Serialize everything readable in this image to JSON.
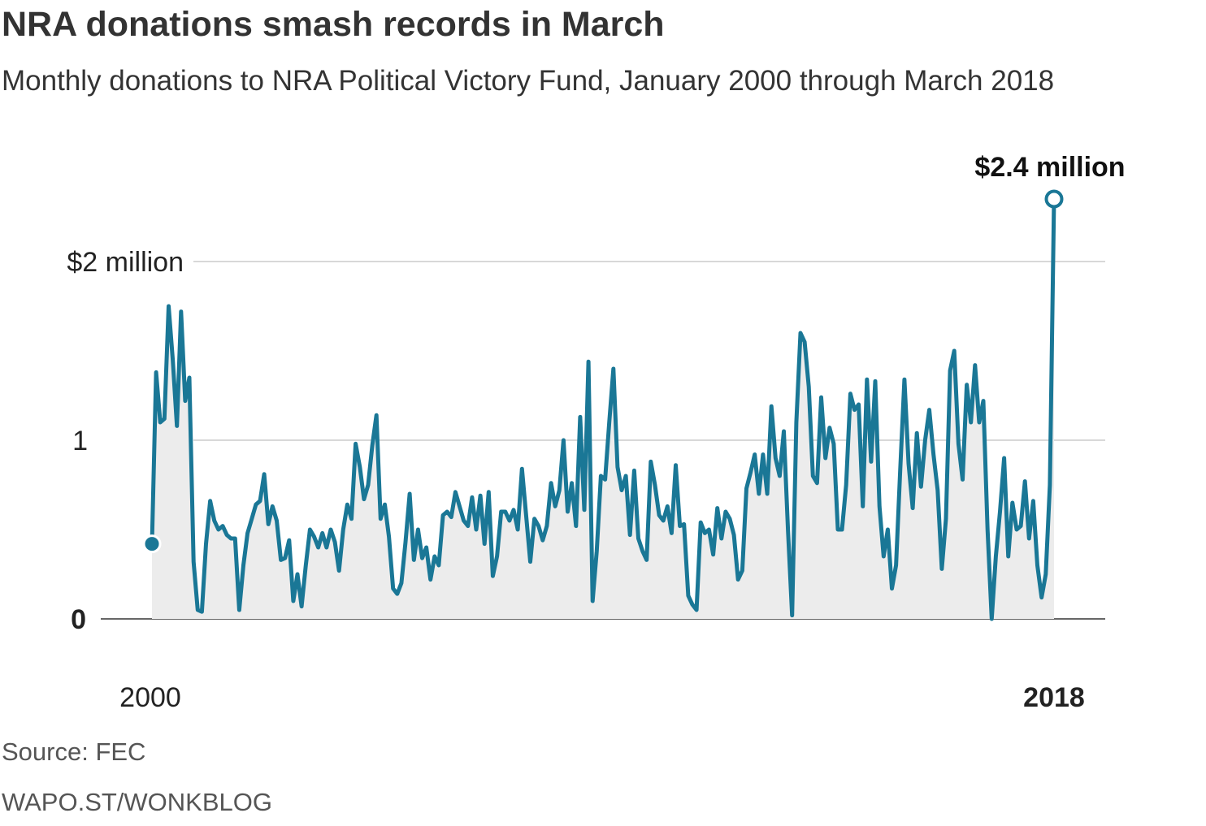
{
  "header": {
    "title": "NRA donations smash records in March",
    "subtitle": "Monthly donations to NRA Political Victory Fund, January 2000 through March 2018"
  },
  "footer": {
    "source": "Source: FEC",
    "credit": "WAPO.ST/WONKBLOG"
  },
  "colors": {
    "line": "#1a7796",
    "area": "#ececec",
    "grid": "#cccccc",
    "baseline": "#666666"
  },
  "chart_data": {
    "type": "area",
    "title": "NRA donations smash records in March",
    "subtitle": "Monthly donations to NRA Political Victory Fund, January 2000 through March 2018",
    "xlabel": "",
    "ylabel": "",
    "x_start": "2000-01",
    "x_end": "2018-03",
    "xlim": [
      2000,
      2018
    ],
    "ylim": [
      0,
      2.4
    ],
    "y_ticks": [
      {
        "value": 0,
        "label": "0",
        "bold": true
      },
      {
        "value": 1,
        "label": "1",
        "bold": false
      },
      {
        "value": 2,
        "label": "$2 million",
        "bold": false
      }
    ],
    "x_ticks": [
      {
        "value": 2000,
        "label": "2000",
        "bold": false
      },
      {
        "value": 2018,
        "label": "2018",
        "bold": true
      }
    ],
    "annotation": {
      "label": "$2.4 million",
      "value": 2.35,
      "month": "2018-03"
    },
    "grid": true,
    "legend": "none",
    "series": [
      {
        "values": [
          0.42,
          1.38,
          1.1,
          1.12,
          1.75,
          1.45,
          1.08,
          1.72,
          1.22,
          1.35,
          0.32,
          0.05,
          0.04,
          0.42,
          0.66,
          0.55,
          0.5,
          0.52,
          0.47,
          0.45,
          0.45,
          0.05,
          0.3,
          0.48,
          0.56,
          0.64,
          0.66,
          0.81,
          0.53,
          0.63,
          0.55,
          0.33,
          0.34,
          0.44,
          0.1,
          0.25,
          0.07,
          0.3,
          0.5,
          0.46,
          0.4,
          0.48,
          0.4,
          0.5,
          0.43,
          0.27,
          0.5,
          0.64,
          0.56,
          0.98,
          0.85,
          0.67,
          0.75,
          0.97,
          1.14,
          0.56,
          0.64,
          0.46,
          0.17,
          0.14,
          0.2,
          0.43,
          0.7,
          0.33,
          0.5,
          0.34,
          0.4,
          0.22,
          0.35,
          0.3,
          0.58,
          0.6,
          0.57,
          0.71,
          0.63,
          0.55,
          0.52,
          0.68,
          0.5,
          0.69,
          0.42,
          0.71,
          0.24,
          0.35,
          0.6,
          0.6,
          0.55,
          0.61,
          0.5,
          0.84,
          0.58,
          0.32,
          0.56,
          0.52,
          0.44,
          0.52,
          0.76,
          0.63,
          0.72,
          1.0,
          0.6,
          0.76,
          0.52,
          1.13,
          0.61,
          1.44,
          0.1,
          0.38,
          0.8,
          0.78,
          1.1,
          1.4,
          0.85,
          0.72,
          0.8,
          0.47,
          0.83,
          0.45,
          0.38,
          0.33,
          0.88,
          0.75,
          0.58,
          0.55,
          0.63,
          0.48,
          0.86,
          0.52,
          0.53,
          0.13,
          0.08,
          0.05,
          0.54,
          0.48,
          0.5,
          0.36,
          0.62,
          0.45,
          0.6,
          0.56,
          0.47,
          0.22,
          0.27,
          0.73,
          0.82,
          0.92,
          0.7,
          0.92,
          0.7,
          1.19,
          0.9,
          0.8,
          1.05,
          0.5,
          0.02,
          1.1,
          1.6,
          1.55,
          1.3,
          0.8,
          0.76,
          1.24,
          0.9,
          1.07,
          0.98,
          0.5,
          0.5,
          0.75,
          1.26,
          1.17,
          1.2,
          0.63,
          1.34,
          0.88,
          1.33,
          0.63,
          0.35,
          0.5,
          0.17,
          0.3,
          0.83,
          1.34,
          0.87,
          0.62,
          1.04,
          0.74,
          1.0,
          1.17,
          0.92,
          0.72,
          0.28,
          0.56,
          1.39,
          1.5,
          0.98,
          0.78,
          1.31,
          1.1,
          1.42,
          1.1,
          1.22,
          0.5,
          0.0,
          0.35,
          0.6,
          0.9,
          0.35,
          0.65,
          0.5,
          0.52,
          0.77,
          0.45,
          0.66,
          0.3,
          0.12,
          0.25,
          0.75,
          2.35
        ]
      }
    ]
  }
}
